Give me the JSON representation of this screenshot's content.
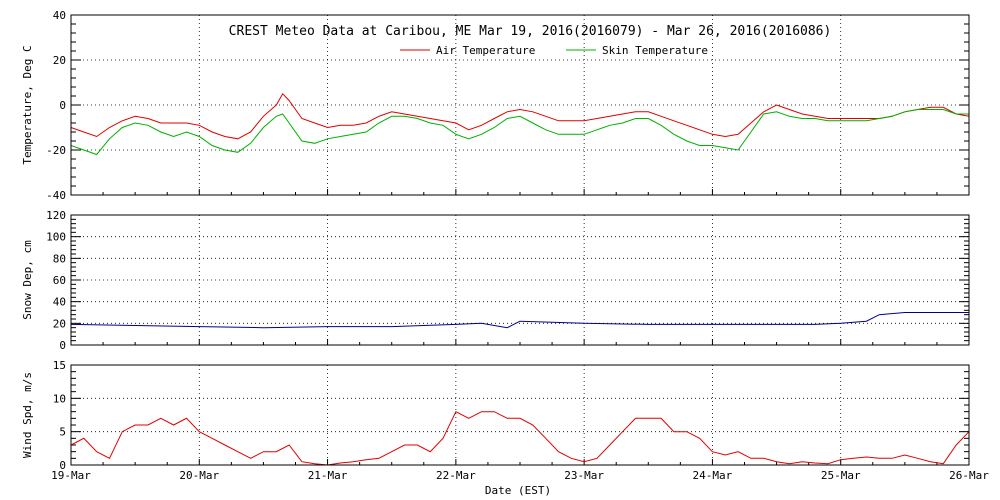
{
  "chart_data": {
    "type": "line",
    "title": "CREST Meteo Data at Caribou, ME   Mar 19, 2016(2016079) - Mar 26, 2016(2016086)",
    "xlabel": "Date (EST)",
    "x_tick_labels": [
      "19-Mar",
      "20-Mar",
      "21-Mar",
      "22-Mar",
      "23-Mar",
      "24-Mar",
      "25-Mar",
      "26-Mar"
    ],
    "xlim": [
      0,
      7
    ],
    "panels": [
      {
        "ylabel": "Temperature, Deg C",
        "ylim": [
          -40,
          40
        ],
        "yticks": [
          -40,
          -20,
          0,
          20,
          40
        ],
        "legend": "top-center",
        "series": [
          {
            "name": "Air Temperature",
            "color": "#e00000",
            "x": [
              0,
              0.1,
              0.2,
              0.3,
              0.4,
              0.5,
              0.6,
              0.7,
              0.8,
              0.9,
              1.0,
              1.1,
              1.2,
              1.3,
              1.4,
              1.5,
              1.6,
              1.65,
              1.7,
              1.8,
              1.9,
              2.0,
              2.1,
              2.2,
              2.3,
              2.4,
              2.5,
              2.6,
              2.7,
              2.8,
              2.9,
              3.0,
              3.1,
              3.2,
              3.3,
              3.4,
              3.5,
              3.6,
              3.7,
              3.8,
              3.9,
              4.0,
              4.1,
              4.2,
              4.3,
              4.4,
              4.5,
              4.6,
              4.7,
              4.8,
              4.9,
              5.0,
              5.1,
              5.2,
              5.3,
              5.4,
              5.5,
              5.6,
              5.7,
              5.8,
              5.9,
              6.0,
              6.1,
              6.2,
              6.3,
              6.4,
              6.5,
              6.6,
              6.7,
              6.8,
              6.9,
              7.0
            ],
            "y": [
              -10,
              -12,
              -14,
              -10,
              -7,
              -5,
              -6,
              -8,
              -8,
              -8,
              -9,
              -12,
              -14,
              -15,
              -12,
              -5,
              0,
              5,
              2,
              -6,
              -8,
              -10,
              -9,
              -9,
              -8,
              -5,
              -3,
              -4,
              -5,
              -6,
              -7,
              -8,
              -11,
              -9,
              -6,
              -3,
              -2,
              -3,
              -5,
              -7,
              -7,
              -7,
              -6,
              -5,
              -4,
              -3,
              -3,
              -5,
              -7,
              -9,
              -11,
              -13,
              -14,
              -13,
              -8,
              -3,
              0,
              -2,
              -4,
              -5,
              -6,
              -6,
              -6,
              -6,
              -6,
              -5,
              -3,
              -2,
              -1,
              -1,
              -4,
              -5
            ]
          },
          {
            "name": "Skin Temperature",
            "color": "#00b000",
            "x": [
              0,
              0.1,
              0.2,
              0.3,
              0.4,
              0.5,
              0.6,
              0.7,
              0.8,
              0.9,
              1.0,
              1.1,
              1.2,
              1.3,
              1.4,
              1.5,
              1.6,
              1.65,
              1.7,
              1.8,
              1.9,
              2.0,
              2.1,
              2.2,
              2.3,
              2.4,
              2.5,
              2.6,
              2.7,
              2.8,
              2.9,
              3.0,
              3.1,
              3.2,
              3.3,
              3.4,
              3.5,
              3.6,
              3.7,
              3.8,
              3.9,
              4.0,
              4.1,
              4.2,
              4.3,
              4.4,
              4.5,
              4.6,
              4.7,
              4.8,
              4.9,
              5.0,
              5.1,
              5.2,
              5.3,
              5.4,
              5.5,
              5.6,
              5.7,
              5.8,
              5.9,
              6.0,
              6.1,
              6.2,
              6.3,
              6.4,
              6.5,
              6.6,
              6.7,
              6.8,
              6.9,
              7.0
            ],
            "y": [
              -18,
              -20,
              -22,
              -15,
              -10,
              -8,
              -9,
              -12,
              -14,
              -12,
              -14,
              -18,
              -20,
              -21,
              -17,
              -10,
              -5,
              -4,
              -8,
              -16,
              -17,
              -15,
              -14,
              -13,
              -12,
              -8,
              -5,
              -5,
              -6,
              -8,
              -9,
              -13,
              -15,
              -13,
              -10,
              -6,
              -5,
              -8,
              -11,
              -13,
              -13,
              -13,
              -11,
              -9,
              -8,
              -6,
              -6,
              -9,
              -13,
              -16,
              -18,
              -18,
              -19,
              -20,
              -12,
              -4,
              -3,
              -5,
              -6,
              -6,
              -7,
              -7,
              -7,
              -7,
              -6,
              -5,
              -3,
              -2,
              -2,
              -2,
              -4,
              -4
            ]
          }
        ]
      },
      {
        "ylabel": "Snow Dep, cm",
        "ylim": [
          0,
          120
        ],
        "yticks": [
          0,
          20,
          40,
          60,
          80,
          100,
          120
        ],
        "series": [
          {
            "name": "Snow Depth",
            "color": "#000090",
            "x": [
              0,
              0.5,
              1.0,
              1.5,
              2.0,
              2.5,
              3.0,
              3.2,
              3.4,
              3.5,
              4.0,
              4.5,
              5.0,
              5.5,
              5.8,
              6.0,
              6.2,
              6.3,
              6.5,
              7.0
            ],
            "y": [
              19,
              18,
              17,
              16,
              17,
              17,
              19,
              20,
              16,
              22,
              20,
              19,
              19,
              19,
              19,
              20,
              22,
              28,
              30,
              30
            ]
          }
        ]
      },
      {
        "ylabel": "Wind Spd, m/s",
        "ylim": [
          0,
          15
        ],
        "yticks": [
          0,
          5,
          10,
          15
        ],
        "series": [
          {
            "name": "Wind Speed",
            "color": "#e00000",
            "x": [
              0,
              0.1,
              0.2,
              0.3,
              0.4,
              0.5,
              0.6,
              0.7,
              0.8,
              0.9,
              1.0,
              1.1,
              1.2,
              1.3,
              1.4,
              1.5,
              1.6,
              1.7,
              1.8,
              1.9,
              2.0,
              2.1,
              2.2,
              2.3,
              2.4,
              2.5,
              2.6,
              2.7,
              2.8,
              2.9,
              3.0,
              3.1,
              3.2,
              3.3,
              3.4,
              3.5,
              3.6,
              3.7,
              3.8,
              3.9,
              4.0,
              4.1,
              4.2,
              4.3,
              4.4,
              4.5,
              4.6,
              4.7,
              4.8,
              4.9,
              5.0,
              5.1,
              5.2,
              5.3,
              5.4,
              5.5,
              5.6,
              5.7,
              5.8,
              5.9,
              6.0,
              6.1,
              6.2,
              6.3,
              6.4,
              6.5,
              6.6,
              6.7,
              6.8,
              6.9,
              7.0
            ],
            "y": [
              3,
              4,
              2,
              1,
              5,
              6,
              6,
              7,
              6,
              7,
              5,
              4,
              3,
              2,
              1,
              2,
              2,
              3,
              0.5,
              0.2,
              0,
              0.3,
              0.5,
              0.8,
              1,
              2,
              3,
              3,
              2,
              4,
              8,
              7,
              8,
              8,
              7,
              7,
              6,
              4,
              2,
              1,
              0.5,
              1,
              3,
              5,
              7,
              7,
              7,
              5,
              5,
              4,
              2,
              1.5,
              2,
              1,
              1,
              0.5,
              0.2,
              0.5,
              0.3,
              0.2,
              0.8,
              1,
              1.2,
              1,
              1,
              1.5,
              1,
              0.5,
              0.2,
              3,
              5
            ]
          }
        ]
      }
    ]
  }
}
